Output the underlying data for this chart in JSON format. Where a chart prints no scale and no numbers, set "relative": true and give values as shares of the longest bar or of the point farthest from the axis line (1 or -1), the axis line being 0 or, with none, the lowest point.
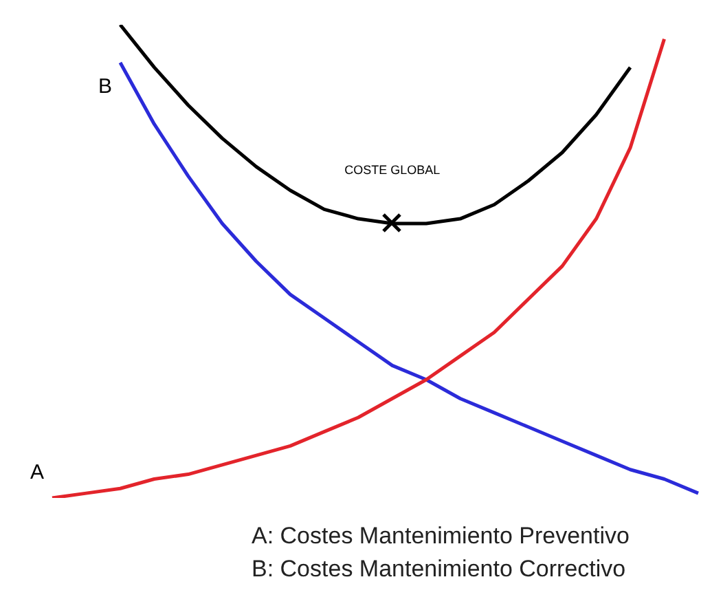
{
  "chart_data": {
    "type": "line",
    "relative": true,
    "categories": [
      null,
      null,
      null,
      null,
      null,
      null,
      null,
      null,
      null,
      null,
      null,
      null,
      null,
      null,
      null,
      null,
      null,
      null,
      null,
      null
    ],
    "series": [
      {
        "name": "A",
        "color": "#e3242b",
        "values": [
          0,
          0.01,
          0.02,
          0.04,
          0.05,
          0.07,
          0.09,
          0.11,
          0.14,
          0.17,
          0.21,
          0.25,
          0.3,
          0.35,
          0.42,
          0.49,
          0.59,
          0.74,
          0.97,
          null
        ]
      },
      {
        "name": "B",
        "color": "#2b2bd9",
        "values": [
          null,
          null,
          0.92,
          0.79,
          0.68,
          0.58,
          0.5,
          0.43,
          0.38,
          0.33,
          0.28,
          0.25,
          0.21,
          0.18,
          0.15,
          0.12,
          0.09,
          0.06,
          0.04,
          0.01
        ]
      },
      {
        "name": "COSTE GLOBAL",
        "color": "#000000",
        "values": [
          null,
          null,
          1.0,
          0.91,
          0.83,
          0.76,
          0.7,
          0.65,
          0.61,
          0.59,
          0.58,
          0.58,
          0.59,
          0.62,
          0.67,
          0.73,
          0.81,
          0.91,
          null,
          null
        ]
      }
    ],
    "marker": "none",
    "line_style": "solid",
    "annotations": [
      "A: Costes Mantenimiento Preventivo",
      "B: Costes Mantenimiento Correctivo"
    ]
  }
}
